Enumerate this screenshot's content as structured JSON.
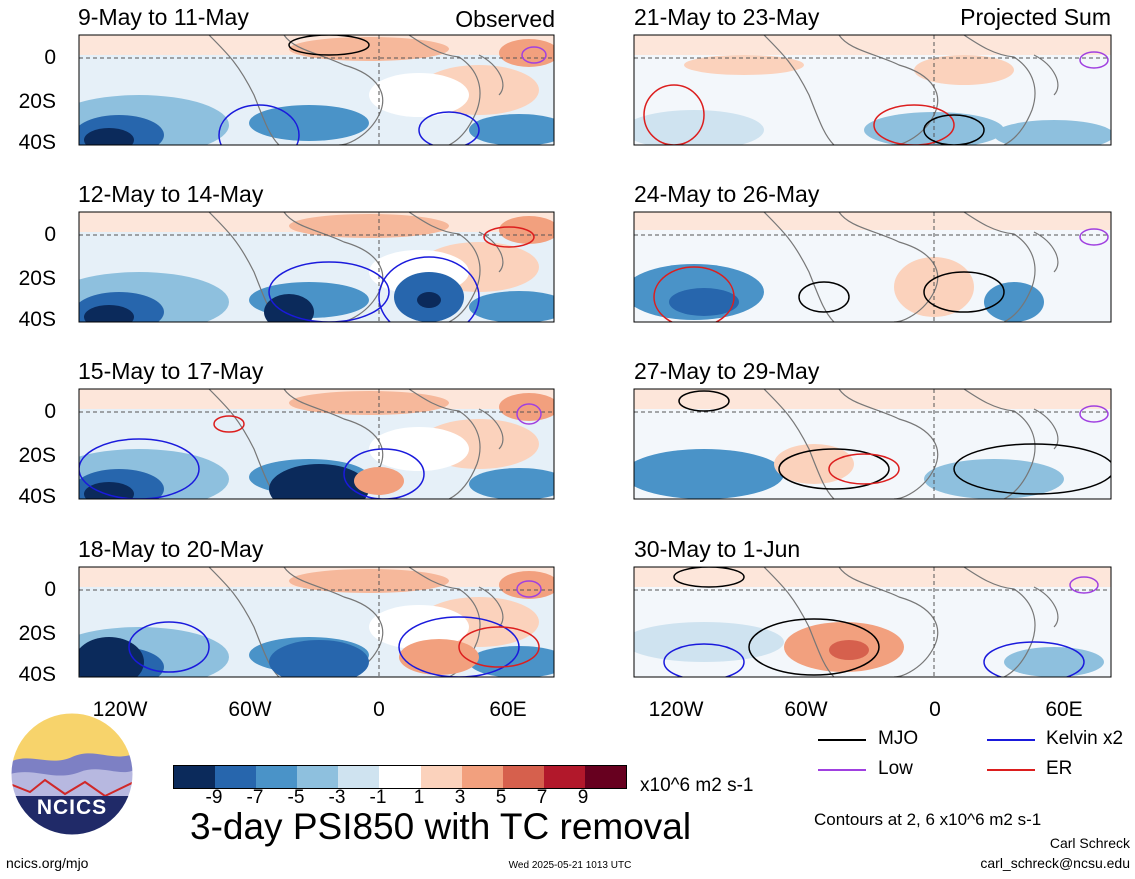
{
  "panels": {
    "left": [
      {
        "title": "9-May to 11-May",
        "tag": "Observed"
      },
      {
        "title": "12-May to 14-May",
        "tag": ""
      },
      {
        "title": "15-May to 17-May",
        "tag": ""
      },
      {
        "title": "18-May to 20-May",
        "tag": ""
      }
    ],
    "right": [
      {
        "title": "21-May to 23-May",
        "tag": "Projected Sum"
      },
      {
        "title": "24-May to 26-May",
        "tag": ""
      },
      {
        "title": "27-May to 29-May",
        "tag": ""
      },
      {
        "title": "30-May to 1-Jun",
        "tag": ""
      }
    ]
  },
  "axes": {
    "y_ticks": [
      "0",
      "20S",
      "40S"
    ],
    "x_ticks": [
      "120W",
      "60W",
      "0",
      "60E"
    ]
  },
  "legend": {
    "items": [
      {
        "label": "MJO",
        "color": "#000000"
      },
      {
        "label": "Kelvin x2",
        "color": "#1a1adc"
      },
      {
        "label": "Low",
        "color": "#a040e0"
      },
      {
        "label": "ER",
        "color": "#dc1e1e"
      }
    ],
    "contours_note": "Contours at 2, 6 x10^6 m2 s-1"
  },
  "colorbar": {
    "labels": [
      "-9",
      "-7",
      "-5",
      "-3",
      "-1",
      "1",
      "3",
      "5",
      "7",
      "9"
    ],
    "units": "x10^6 m2 s-1",
    "colors": [
      "#0b2a5b",
      "#2766ad",
      "#4a93c8",
      "#8ec0de",
      "#cfe3f0",
      "#ffffff",
      "#fbd2bc",
      "#f2a07e",
      "#d6604d",
      "#b2182b",
      "#67001f"
    ]
  },
  "main_title": "3-day PSI850 with TC removal",
  "author": "Carl Schreck",
  "email": "carl_schreck@ncsu.edu",
  "url": "ncics.org/mjo",
  "timestamp": "Wed 2025-05-21 1013 UTC",
  "logo_text": "NCICS"
}
